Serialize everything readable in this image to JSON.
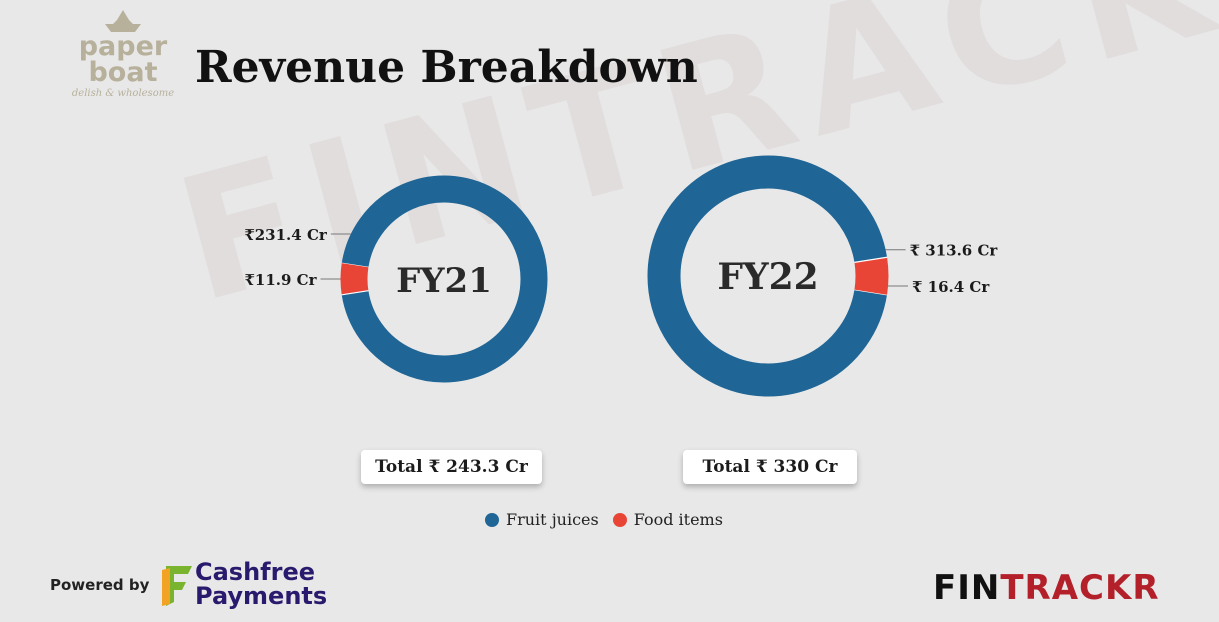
{
  "title": "Revenue Breakdown",
  "watermark": "FINTRACKR",
  "logo": {
    "line1": "paper",
    "line2": "boat",
    "tagline": "delish & wholesome"
  },
  "colors": {
    "fruit_juices": "#1f6595",
    "food_items": "#e84536",
    "background": "#e8e8e8"
  },
  "chart_data": [
    {
      "type": "pie",
      "center_label": "FY21",
      "categories": [
        "Fruit juices",
        "Food items"
      ],
      "values": [
        231.4,
        11.9
      ],
      "data_labels": [
        "₹231.4 Cr",
        "₹11.9 Cr"
      ],
      "total_label": "Total ₹ 243.3 Cr"
    },
    {
      "type": "pie",
      "center_label": "FY22",
      "categories": [
        "Fruit juices",
        "Food items"
      ],
      "values": [
        313.6,
        16.4
      ],
      "data_labels": [
        "₹ 313.6 Cr",
        "₹ 16.4 Cr"
      ],
      "total_label": "Total ₹ 330 Cr"
    }
  ],
  "legend": [
    {
      "label": "Fruit juices",
      "color": "#1f6595"
    },
    {
      "label": "Food items",
      "color": "#e84536"
    }
  ],
  "footer": {
    "powered_by": "Powered by",
    "sponsor_line1": "Cashfree",
    "sponsor_line2": "Payments",
    "brand_part1": "FIN",
    "brand_part2": "TRACKR"
  }
}
